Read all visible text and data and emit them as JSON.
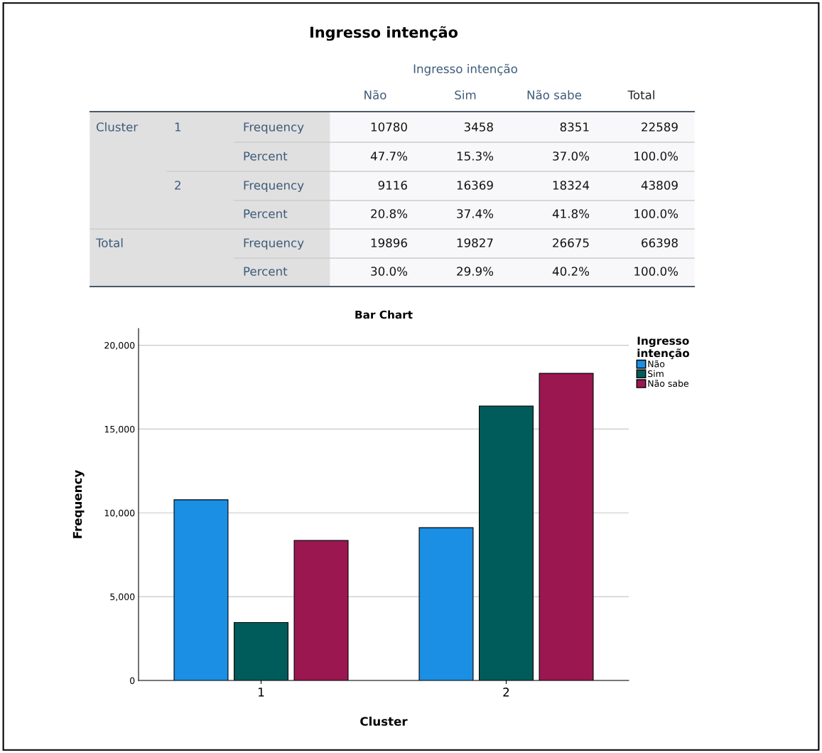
{
  "chart_data": [
    {
      "type": "other",
      "title": "Ingresso intenção",
      "xlabel": "Ingresso intenção",
      "cell_labels": [
        [
          null,
          null,
          null,
          "Não",
          "Sim",
          "Não sabe",
          "Total"
        ],
        [
          "Cluster",
          "1",
          "Frequency",
          "10780",
          "3458",
          "8351",
          "22589"
        ],
        [
          null,
          null,
          "Percent",
          "47.7%",
          "15.3%",
          "37.0%",
          "100.0%"
        ],
        [
          null,
          "2",
          "Frequency",
          "9116",
          "16369",
          "18324",
          "43809"
        ],
        [
          null,
          null,
          "Percent",
          "20.8%",
          "37.4%",
          "41.8%",
          "100.0%"
        ],
        [
          "Total",
          null,
          "Frequency",
          "19896",
          "19827",
          "26675",
          "66398"
        ],
        [
          null,
          null,
          "Percent",
          "30.0%",
          "29.9%",
          "40.2%",
          "100.0%"
        ]
      ]
    },
    {
      "type": "bar",
      "title": "Bar Chart",
      "xlabel": "Cluster",
      "ylabel": "Frequency",
      "categories": [
        "1",
        "2"
      ],
      "series": [
        {
          "name": "Não",
          "color": "#1a8fe3",
          "values": [
            10780,
            9116
          ]
        },
        {
          "name": "Sim",
          "color": "#005c5a",
          "values": [
            3458,
            16369
          ]
        },
        {
          "name": "Não sabe",
          "color": "#9b1750",
          "values": [
            8351,
            18324
          ]
        }
      ],
      "ylim": [
        0,
        21000
      ],
      "yticks": [
        0,
        {
          "value": 5000,
          "label": "5,000"
        },
        {
          "value": 10000,
          "label": "10,000"
        },
        {
          "value": 15000,
          "label": "15,000"
        },
        {
          "value": 20000,
          "label": "20,000"
        }
      ],
      "grid": "y",
      "legend": "right",
      "legend_title": "Ingresso\nintenção"
    }
  ]
}
